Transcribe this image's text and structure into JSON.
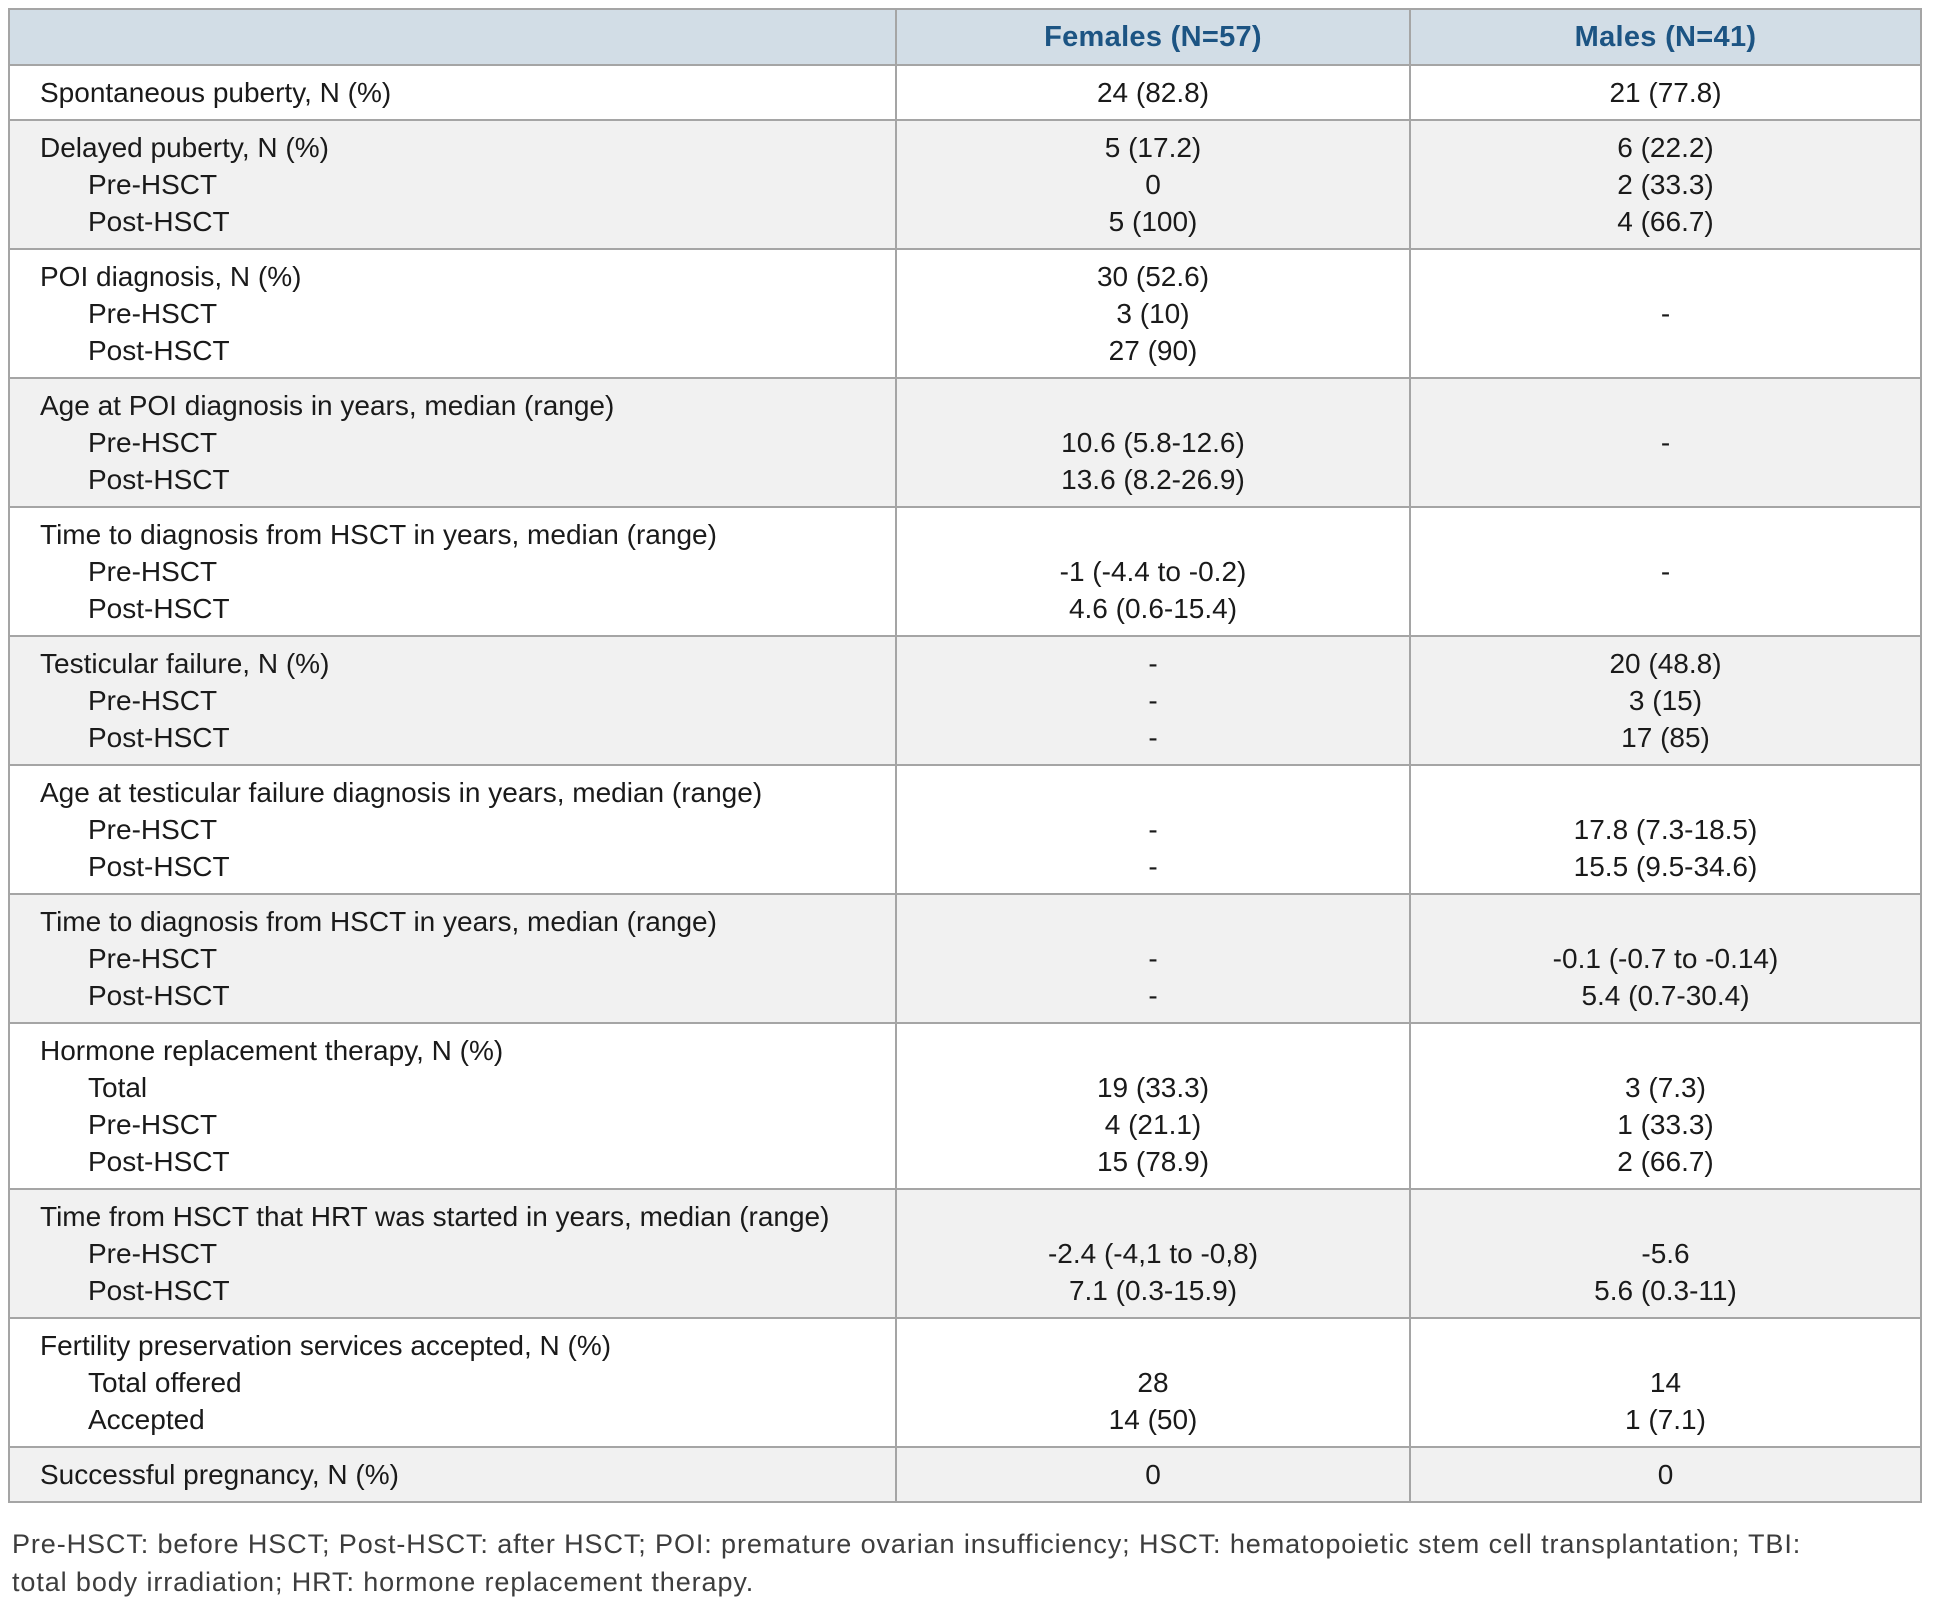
{
  "header": {
    "empty": "",
    "females": "Females (N=57)",
    "males": "Males (N=41)"
  },
  "rows": [
    {
      "label_lines": [
        "Spontaneous puberty, N (%)"
      ],
      "females": {
        "center": false,
        "lines": [
          "24 (82.8)"
        ]
      },
      "males": {
        "center": false,
        "lines": [
          "21 (77.8)"
        ]
      }
    },
    {
      "label_lines": [
        "Delayed puberty, N (%)",
        "Pre-HSCT",
        "Post-HSCT"
      ],
      "females": {
        "center": false,
        "lines": [
          "5 (17.2)",
          "0",
          "5 (100)"
        ]
      },
      "males": {
        "center": false,
        "lines": [
          "6 (22.2)",
          "2 (33.3)",
          "4 (66.7)"
        ]
      }
    },
    {
      "label_lines": [
        "POI diagnosis, N (%)",
        "Pre-HSCT",
        "Post-HSCT"
      ],
      "females": {
        "center": false,
        "lines": [
          "30 (52.6)",
          "3 (10)",
          "27 (90)"
        ]
      },
      "males": {
        "center": true,
        "lines": [
          "-"
        ]
      }
    },
    {
      "label_lines": [
        "Age at POI diagnosis in years, median (range)",
        "Pre-HSCT",
        "Post-HSCT"
      ],
      "females": {
        "center": false,
        "lines": [
          "",
          "10.6 (5.8-12.6)",
          "13.6 (8.2-26.9)"
        ]
      },
      "males": {
        "center": true,
        "lines": [
          "-"
        ]
      }
    },
    {
      "label_lines": [
        "Time to diagnosis from HSCT in years, median (range)",
        "Pre-HSCT",
        "Post-HSCT"
      ],
      "females": {
        "center": false,
        "lines": [
          "",
          "-1 (-4.4 to -0.2)",
          "4.6 (0.6-15.4)"
        ]
      },
      "males": {
        "center": true,
        "lines": [
          "-"
        ]
      }
    },
    {
      "label_lines": [
        "Testicular failure, N (%)",
        "Pre-HSCT",
        "Post-HSCT"
      ],
      "females": {
        "center": false,
        "lines": [
          "-",
          "-",
          "-"
        ]
      },
      "males": {
        "center": false,
        "lines": [
          "20 (48.8)",
          "3 (15)",
          "17 (85)"
        ]
      }
    },
    {
      "label_lines": [
        "Age at testicular failure diagnosis in years, median (range)",
        "Pre-HSCT",
        "Post-HSCT"
      ],
      "females": {
        "center": false,
        "lines": [
          "",
          "-",
          "-"
        ]
      },
      "males": {
        "center": false,
        "lines": [
          "",
          "17.8 (7.3-18.5)",
          "15.5 (9.5-34.6)"
        ]
      }
    },
    {
      "label_lines": [
        "Time to diagnosis from HSCT in years, median (range)",
        "Pre-HSCT",
        "Post-HSCT"
      ],
      "females": {
        "center": false,
        "lines": [
          "",
          "-",
          "-"
        ]
      },
      "males": {
        "center": false,
        "lines": [
          "",
          "-0.1 (-0.7 to -0.14)",
          "5.4 (0.7-30.4)"
        ]
      }
    },
    {
      "label_lines": [
        "Hormone replacement therapy, N (%)",
        "Total",
        "Pre-HSCT",
        "Post-HSCT"
      ],
      "females": {
        "center": false,
        "lines": [
          "",
          "19 (33.3)",
          "4 (21.1)",
          "15 (78.9)"
        ]
      },
      "males": {
        "center": false,
        "lines": [
          "",
          "3 (7.3)",
          "1 (33.3)",
          "2 (66.7)"
        ]
      }
    },
    {
      "label_lines": [
        "Time from HSCT that HRT was started in years, median (range)",
        "Pre-HSCT",
        "Post-HSCT"
      ],
      "females": {
        "center": false,
        "lines": [
          "",
          "-2.4 (-4,1 to -0,8)",
          "7.1 (0.3-15.9)"
        ]
      },
      "males": {
        "center": false,
        "lines": [
          "",
          "-5.6",
          "5.6 (0.3-11)"
        ]
      }
    },
    {
      "label_lines": [
        "Fertility preservation services accepted, N (%)",
        "Total offered",
        "Accepted"
      ],
      "females": {
        "center": false,
        "lines": [
          "",
          "28",
          "14 (50)"
        ]
      },
      "males": {
        "center": false,
        "lines": [
          "",
          "14",
          "1 (7.1)"
        ]
      }
    },
    {
      "label_lines": [
        "Successful pregnancy, N (%)"
      ],
      "females": {
        "center": false,
        "lines": [
          "0"
        ]
      },
      "males": {
        "center": false,
        "lines": [
          "0"
        ]
      }
    }
  ],
  "footnote_lines": [
    "Pre-HSCT: before HSCT; Post-HSCT: after HSCT; POI: premature ovarian insufficiency; HSCT: hematopoietic stem cell transplantation; TBI:",
    "total body irradiation; HRT: hormone replacement therapy."
  ],
  "colors": {
    "header_bg": "#d2dde6",
    "header_text": "#1c5483",
    "stripe": "#f1f1f1",
    "border": "#a5a5a5",
    "body_text": "#1a1a1a",
    "footnote_text": "#3d3d3d"
  }
}
